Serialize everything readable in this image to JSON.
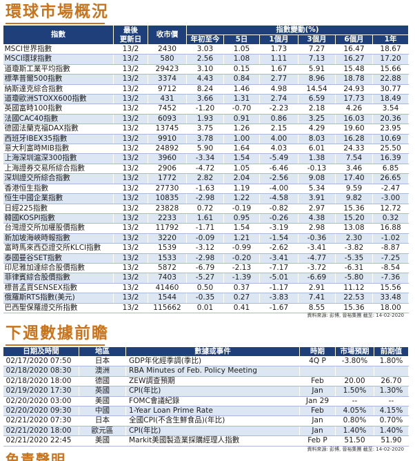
{
  "section1": {
    "title": "環球市場概況",
    "headers": {
      "index": "指數",
      "latest_update": "最後\n更新日",
      "close": "收市價",
      "change_group": "指數變動(%)",
      "ytd": "年初至今",
      "d5": "5日",
      "m1": "1個月",
      "m3": "3個月",
      "m6": "6個月",
      "y1": "1年"
    },
    "rows": [
      [
        "MSCI世界指數",
        "13/2",
        "2430",
        "3.03",
        "1.05",
        "1.73",
        "7.27",
        "16.47",
        "18.67"
      ],
      [
        "MSCI環球指數",
        "13/2",
        "580",
        "2.56",
        "1.08",
        "1.11",
        "7.13",
        "16.27",
        "17.20"
      ],
      [
        "道瓊斯工業平均指數",
        "13/2",
        "29423",
        "3.10",
        "0.15",
        "1.67",
        "5.91",
        "15.48",
        "15.66"
      ],
      [
        "標準普爾500指數",
        "13/2",
        "3374",
        "4.43",
        "0.84",
        "2.77",
        "8.96",
        "18.78",
        "22.88"
      ],
      [
        "納斯達克綜合指數",
        "13/2",
        "9712",
        "8.24",
        "1.46",
        "4.98",
        "14.54",
        "24.93",
        "30.77"
      ],
      [
        "道瓊歐洲STOXX600指數",
        "13/2",
        "431",
        "3.66",
        "1.31",
        "2.74",
        "6.59",
        "17.73",
        "18.49"
      ],
      [
        "英國富時100指數",
        "13/2",
        "7452",
        "-1.20",
        "-0.70",
        "-2.23",
        "2.18",
        "4.26",
        "3.54"
      ],
      [
        "法國CAC40指數",
        "13/2",
        "6093",
        "1.93",
        "0.91",
        "0.86",
        "3.25",
        "16.03",
        "20.36"
      ],
      [
        "德國法蘭克福DAX指數",
        "13/2",
        "13745",
        "3.75",
        "1.26",
        "2.15",
        "4.29",
        "19.60",
        "23.95"
      ],
      [
        "西班牙IBEX35指數",
        "13/2",
        "9910",
        "3.78",
        "1.00",
        "4.00",
        "8.03",
        "16.28",
        "10.69"
      ],
      [
        "意大利富時MIB指數",
        "13/2",
        "24892",
        "5.90",
        "1.64",
        "4.03",
        "6.01",
        "24.33",
        "25.50"
      ],
      [
        "上海深圳滬深300指數",
        "13/2",
        "3960",
        "-3.34",
        "1.54",
        "-5.49",
        "1.38",
        "7.54",
        "16.39"
      ],
      [
        "上海證券交易所綜合指數",
        "13/2",
        "2906",
        "-4.72",
        "1.05",
        "-6.46",
        "-0.13",
        "3.46",
        "6.85"
      ],
      [
        "深圳證交所綜合指數",
        "13/2",
        "1772",
        "2.82",
        "2.04",
        "-2.56",
        "9.08",
        "17.40",
        "26.65"
      ],
      [
        "香港恒生指數",
        "13/2",
        "27730",
        "-1.63",
        "1.19",
        "-4.00",
        "5.34",
        "9.59",
        "-2.47"
      ],
      [
        "恒生中國企業指數",
        "13/2",
        "10835",
        "-2.98",
        "1.22",
        "-4.58",
        "3.91",
        "9.82",
        "-3.00"
      ],
      [
        "日經225指數",
        "13/2",
        "23828",
        "0.72",
        "-0.19",
        "-0.82",
        "2.97",
        "15.36",
        "12.72"
      ],
      [
        "韓國KOSPI指數",
        "13/2",
        "2233",
        "1.61",
        "0.95",
        "-0.26",
        "4.38",
        "15.20",
        "0.32"
      ],
      [
        "台灣證交所加權股價指數",
        "13/2",
        "11792",
        "-1.71",
        "1.54",
        "-3.19",
        "2.98",
        "13.08",
        "16.88"
      ],
      [
        "新加坡海峽時報指數",
        "13/2",
        "3220",
        "-0.09",
        "1.21",
        "-1.54",
        "-0.36",
        "2.30",
        "-1.02"
      ],
      [
        "富時馬來西亞證交所KLCI指數",
        "13/2",
        "1539",
        "-3.12",
        "-0.99",
        "-2.62",
        "-3.41",
        "-3.82",
        "-8.87"
      ],
      [
        "泰國曼谷SET指數",
        "13/2",
        "1533",
        "-2.98",
        "-0.20",
        "-3.41",
        "-4.77",
        "-5.35",
        "-7.25"
      ],
      [
        "印尼雅加達綜合股價指數",
        "13/2",
        "5872",
        "-6.79",
        "-2.13",
        "-7.17",
        "-3.72",
        "-6.31",
        "-8.54"
      ],
      [
        "菲律賓綜合股價指數",
        "13/2",
        "7403",
        "-5.27",
        "-1.39",
        "-5.01",
        "-6.69",
        "-5.80",
        "-7.36"
      ],
      [
        "標普孟買SENSEX指數",
        "13/2",
        "41460",
        "0.50",
        "0.37",
        "-1.17",
        "2.91",
        "11.12",
        "15.56"
      ],
      [
        "俄羅斯RTS指數(美元)",
        "13/2",
        "1544",
        "-0.35",
        "0.27",
        "-3.83",
        "7.41",
        "22.53",
        "33.48"
      ],
      [
        "巴西聖保羅證交所指數",
        "13/2",
        "115662",
        "0.01",
        "0.41",
        "-1.67",
        "8.55",
        "15.36",
        "18.00"
      ]
    ],
    "source": "資料來源: 彭博, 晉裕集團 截至: 14-02-2020"
  },
  "section2": {
    "title": "下週數據前瞻",
    "headers": {
      "datetime": "日期及時間",
      "region": "地區",
      "event": "數據或事件",
      "period": "時期",
      "forecast": "市場預期",
      "previous": "前期值"
    },
    "rows": [
      [
        "02/17/2020 07:50",
        "日本",
        "GDP年化經季調(季比)",
        "4Q P",
        "-3.80%",
        "1.80%"
      ],
      [
        "02/18/2020 08:30",
        "澳洲",
        "RBA Minutes of Feb. Policy Meeting",
        "",
        "",
        ""
      ],
      [
        "02/18/2020 18:00",
        "德國",
        "ZEW調查預期",
        "Feb",
        "20.00",
        "26.70"
      ],
      [
        "02/19/2020 17:30",
        "英國",
        "CPI(年比)",
        "Jan",
        "1.50%",
        "1.30%"
      ],
      [
        "02/20/2020 03:00",
        "美國",
        "FOMC會議紀錄",
        "Jan 29",
        "--",
        "--"
      ],
      [
        "02/20/2020 09:30",
        "中國",
        "1-Year Loan Prime Rate",
        "Feb",
        "4.05%",
        "4.15%"
      ],
      [
        "02/21/2020 07:30",
        "日本",
        "全國CPI(不含生鮮食品)(年比)",
        "Jan",
        "0.80%",
        "0.70%"
      ],
      [
        "02/21/2020 18:00",
        "歐元區",
        "CPI(年比)",
        "Jan",
        "1.40%",
        "1.40%"
      ],
      [
        "02/21/2020 22:45",
        "美國",
        "Markit美國製造業採購經理人指數",
        "Feb P",
        "51.50",
        "51.90"
      ]
    ],
    "source": "資料來源: 彭博, 晉裕集團 截至: 14-02-2020"
  },
  "section3": {
    "title": "免責聲明"
  }
}
